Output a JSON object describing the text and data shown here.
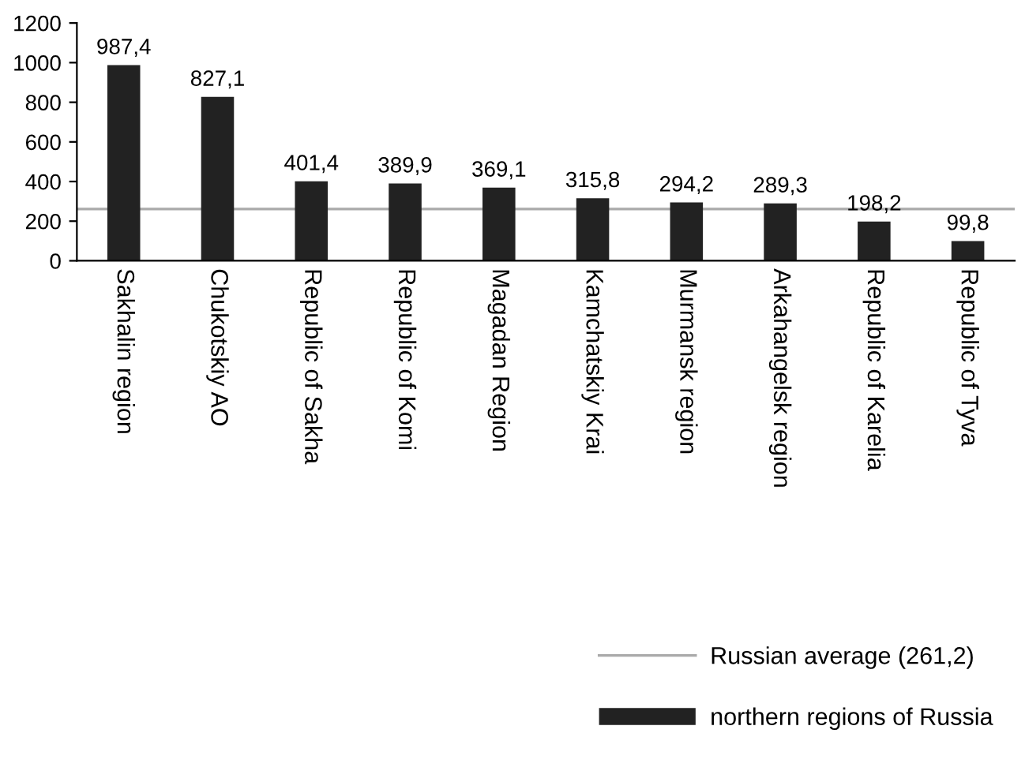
{
  "chart_data": {
    "type": "bar",
    "categories": [
      "Sakhalin region",
      "Chukotskiy AO",
      "Republic of Sakha",
      "Republic of Komi",
      "Magadan Region",
      "Kamchatskiy Krai",
      "Murmansk region",
      "Arkahangelsk region",
      "Republic of Karelia",
      "Republic of Tyva"
    ],
    "series": [
      {
        "name": "northern regions of Russia",
        "color": "#222222",
        "values": [
          987.4,
          827.1,
          401.4,
          389.9,
          369.1,
          315.8,
          294.2,
          289.3,
          198.2,
          99.8
        ],
        "value_labels": [
          "987,4",
          "827,1",
          "401,4",
          "389,9",
          "369,1",
          "315,8",
          "294,2",
          "289,3",
          "198,2",
          "99,8"
        ]
      }
    ],
    "ylim": [
      0,
      1200
    ],
    "yticks": [
      0,
      200,
      400,
      600,
      800,
      1000,
      1200
    ],
    "ref_lines": [
      {
        "axis": "y",
        "value": 261.2,
        "label": "Russian average (261,2)",
        "color": "#aaaaaa"
      }
    ],
    "grid": false,
    "legend": "bottom right"
  }
}
